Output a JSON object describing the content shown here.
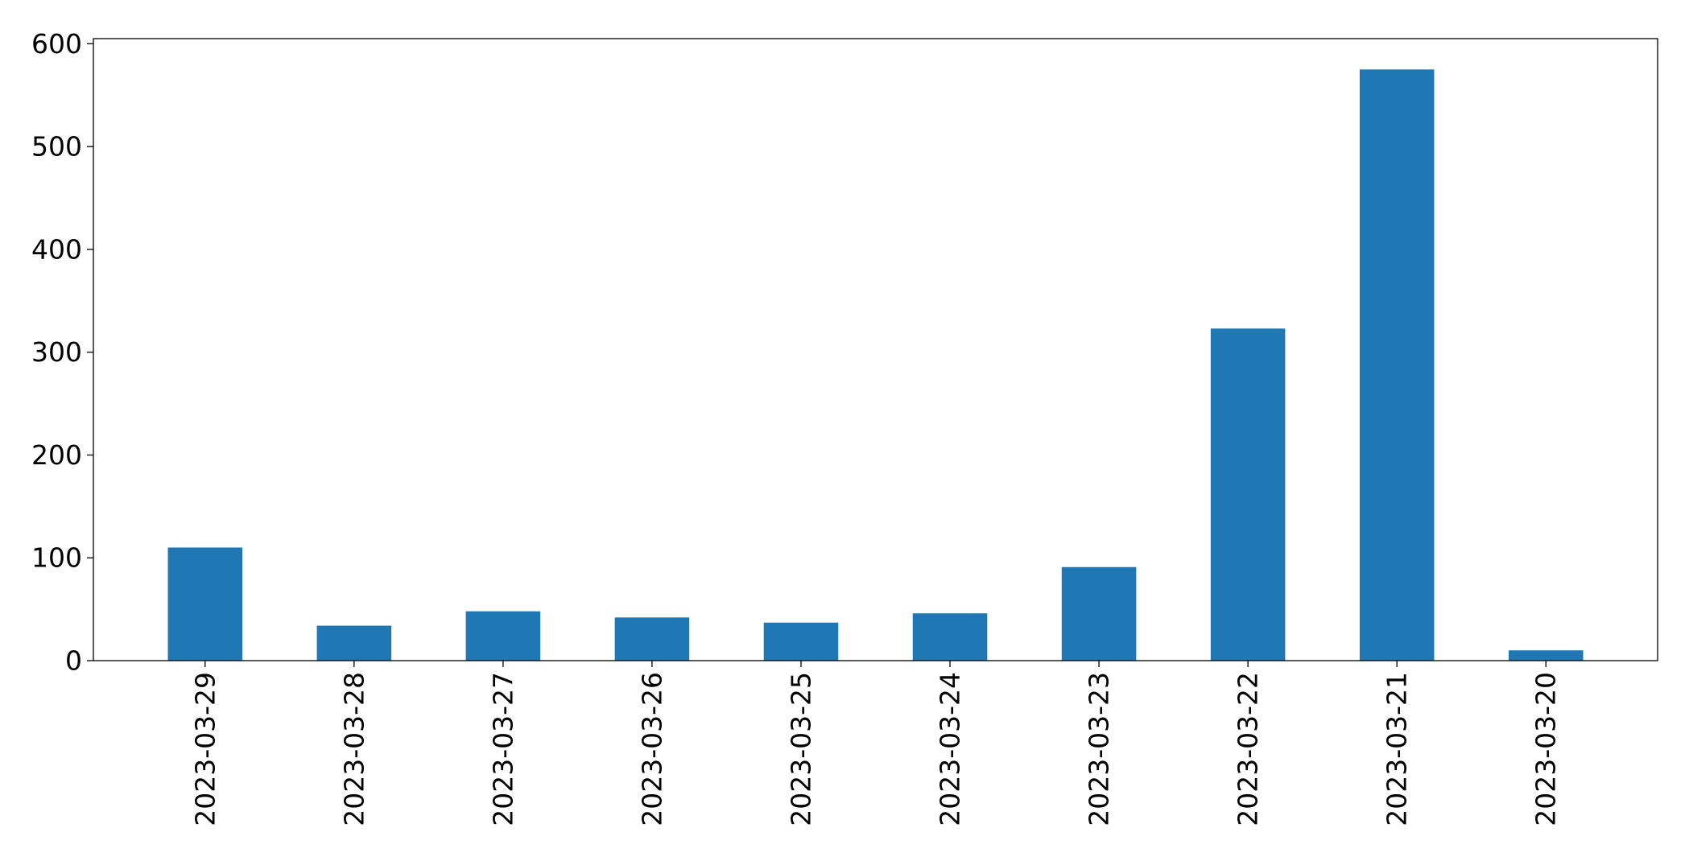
{
  "chart_data": {
    "type": "bar",
    "title": "",
    "xlabel": "",
    "ylabel": "",
    "categories": [
      "2023-03-29",
      "2023-03-28",
      "2023-03-27",
      "2023-03-26",
      "2023-03-25",
      "2023-03-24",
      "2023-03-23",
      "2023-03-22",
      "2023-03-21",
      "2023-03-20"
    ],
    "series": [
      {
        "color": "#1f77b4",
        "values": [
          110,
          34,
          48,
          42,
          37,
          46,
          91,
          323,
          575,
          10
        ]
      }
    ],
    "ylim": [
      0,
      605
    ],
    "yticks": [
      0,
      100,
      200,
      300,
      400,
      500,
      600
    ],
    "grid": false,
    "legend": false,
    "x_tick_rotation": "vertical"
  }
}
